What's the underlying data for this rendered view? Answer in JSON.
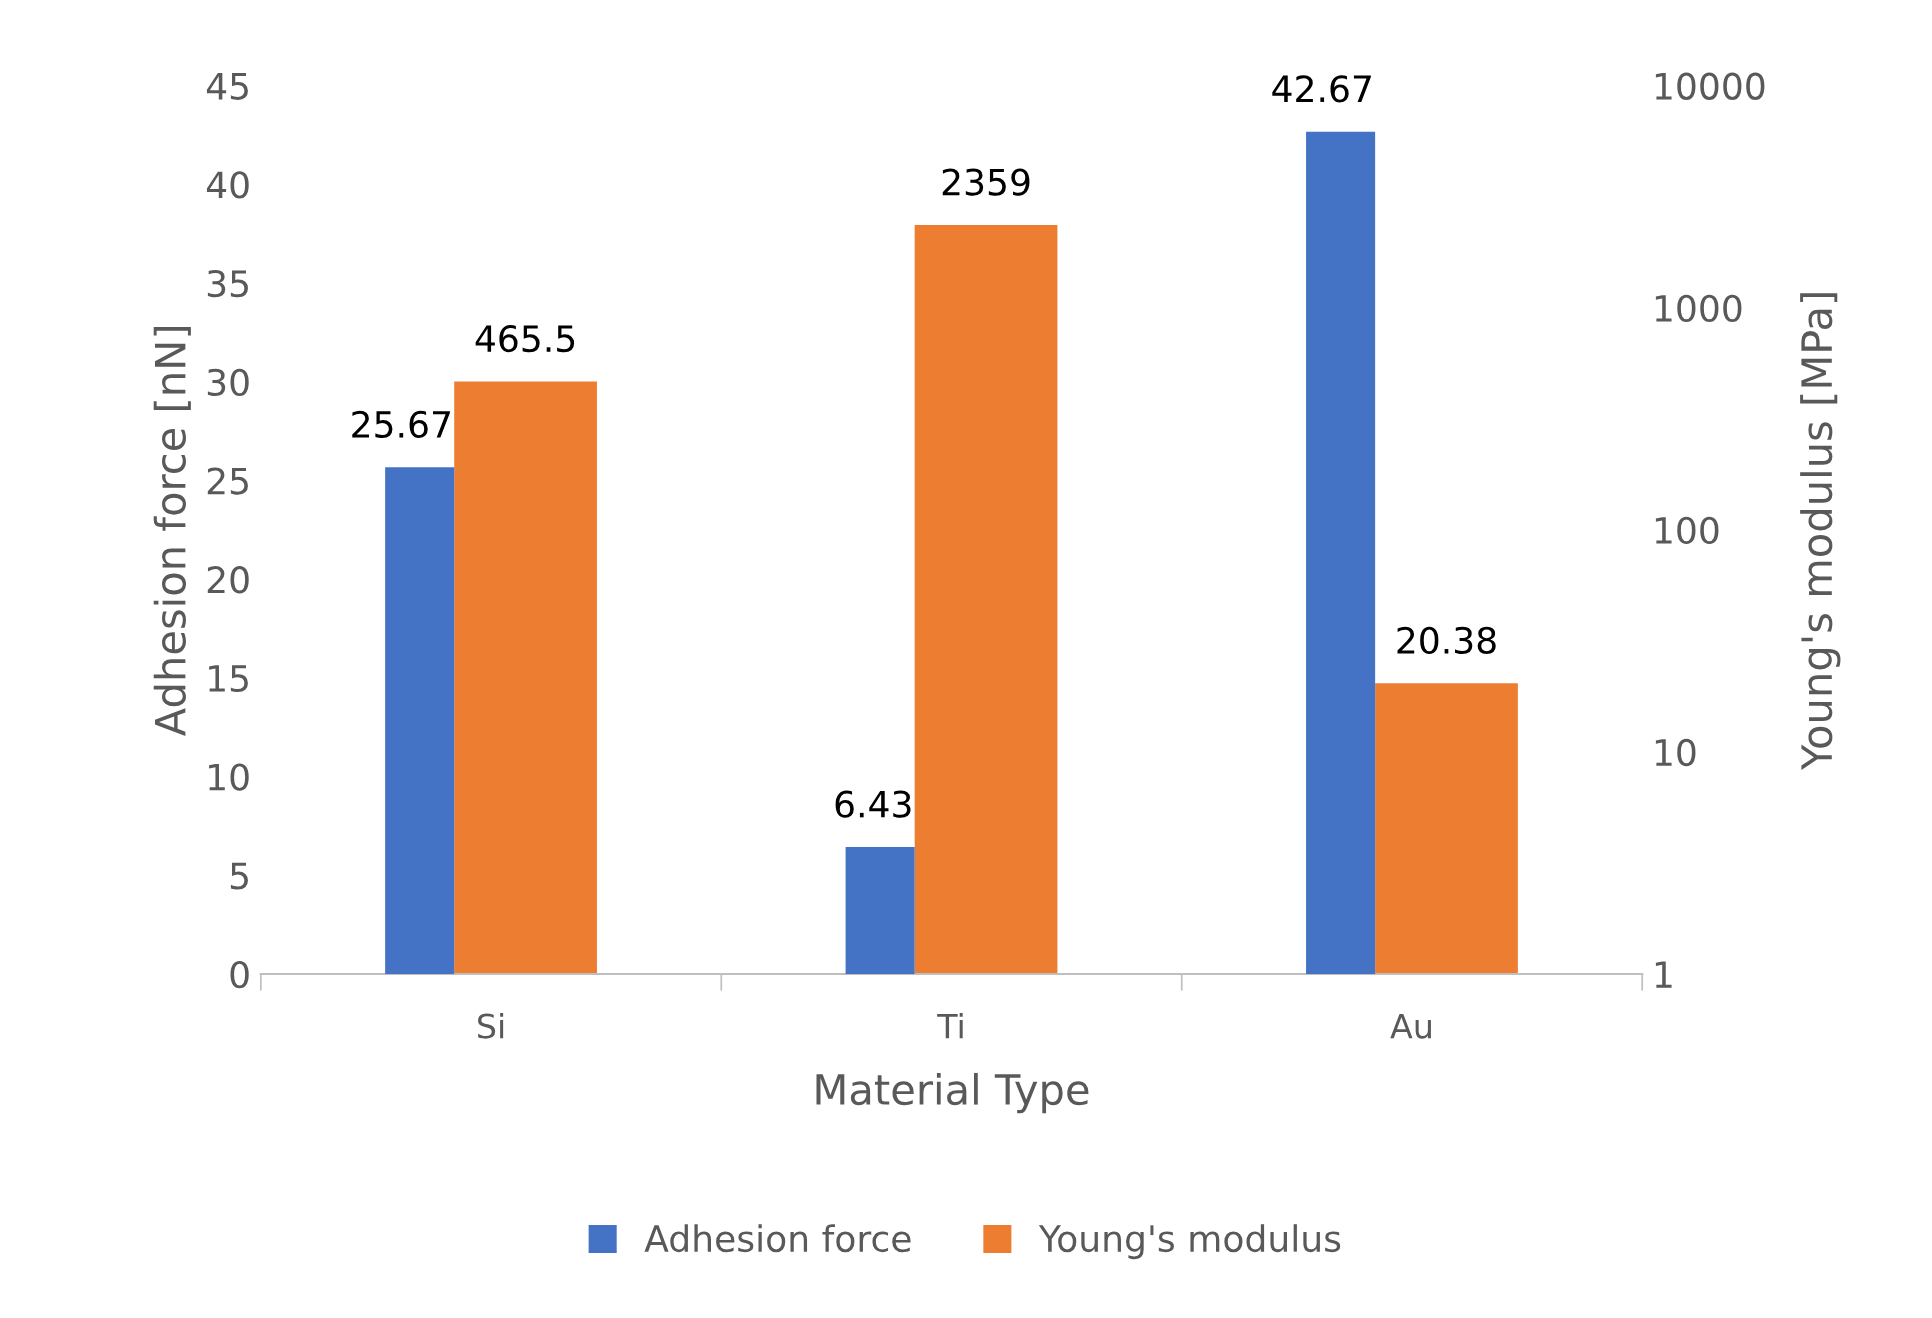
{
  "chart_data": {
    "type": "bar",
    "xlabel": "Material Type",
    "ylabel": "Adhesion force [nN]",
    "y2label": "Young's modulus [MPa]",
    "categories": [
      "Si",
      "Ti",
      "Au"
    ],
    "series": [
      {
        "name": "Adhesion force",
        "color": "#4472c4",
        "values": [
          25.67,
          6.43,
          42.67
        ]
      },
      {
        "name": "Young's modulus",
        "color": "#ed7d31",
        "values": [
          465.5,
          2359,
          20.38
        ],
        "axis": "y2"
      }
    ],
    "ylim": [
      0,
      45
    ],
    "yticks": [
      0,
      5,
      10,
      15,
      20,
      25,
      30,
      35,
      40,
      45
    ],
    "y2lim": [
      1,
      10000
    ],
    "y2ticks": [
      1,
      10,
      100,
      1000,
      10000
    ],
    "log": "y2",
    "data_labels": true,
    "grid": false,
    "legend": "bottom"
  }
}
